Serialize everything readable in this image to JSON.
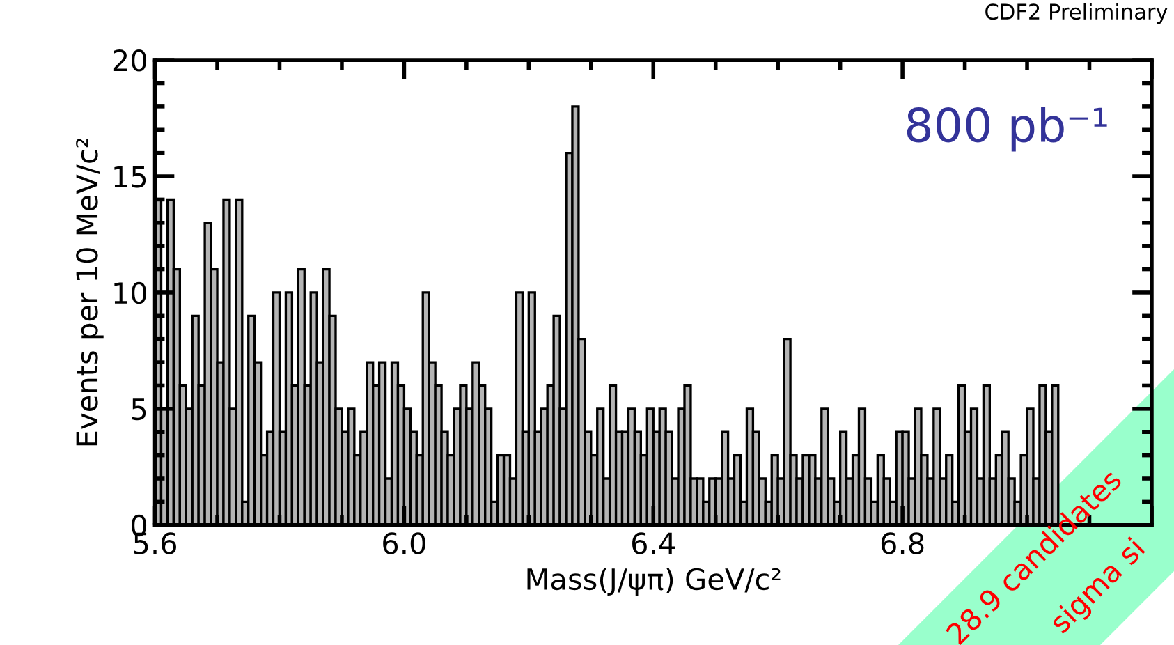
{
  "chart_data": {
    "type": "histogram",
    "annotations": [
      "CDF2 Preliminary",
      "800 pb⁻¹",
      "28.9 candidates",
      "sigma si"
    ],
    "xlabel": "Mass(J/ψπ) GeV/c²",
    "ylabel": "Events per 10 MeV/c²",
    "bins": [
      5.6,
      5.61,
      5.62,
      5.63,
      5.64,
      5.65,
      5.66,
      5.67,
      5.68,
      5.69,
      5.7,
      5.71,
      5.72,
      5.73,
      5.74,
      5.75,
      5.76,
      5.77,
      5.78,
      5.79,
      5.8,
      5.81,
      5.82,
      5.83,
      5.84,
      5.85,
      5.86,
      5.87,
      5.88,
      5.89,
      5.9,
      5.91,
      5.92,
      5.93,
      5.94,
      5.95,
      5.96,
      5.97,
      5.98,
      5.99,
      6.0,
      6.01,
      6.02,
      6.03,
      6.04,
      6.05,
      6.06,
      6.07,
      6.08,
      6.09,
      6.1,
      6.11,
      6.12,
      6.13,
      6.14,
      6.15,
      6.16,
      6.17,
      6.18,
      6.19,
      6.2,
      6.21,
      6.22,
      6.23,
      6.24,
      6.25,
      6.26,
      6.27,
      6.28,
      6.29,
      6.3,
      6.31,
      6.32,
      6.33,
      6.34,
      6.35,
      6.36,
      6.37,
      6.38,
      6.39,
      6.4,
      6.41,
      6.42,
      6.43,
      6.44,
      6.45,
      6.46,
      6.47,
      6.48,
      6.49,
      6.5,
      6.51,
      6.52,
      6.53,
      6.54,
      6.55,
      6.56,
      6.57,
      6.58,
      6.59,
      6.6,
      6.61,
      6.62,
      6.63,
      6.64,
      6.65,
      6.66,
      6.67,
      6.68,
      6.69,
      6.7,
      6.71,
      6.72,
      6.73,
      6.74,
      6.75,
      6.76,
      6.77,
      6.78,
      6.79,
      6.8,
      6.81,
      6.82,
      6.83,
      6.84,
      6.85,
      6.86,
      6.87,
      6.88,
      6.89,
      6.9,
      6.91,
      6.92,
      6.93,
      6.94,
      6.95,
      6.96,
      6.97,
      6.98,
      6.99,
      7.0,
      7.01,
      7.02,
      7.03,
      7.04,
      7.05,
      7.06,
      7.07,
      7.08,
      7.09,
      7.1,
      7.11,
      7.12,
      7.13,
      7.14,
      7.15,
      7.16,
      7.17,
      7.18,
      7.19,
      7.2
    ],
    "values": [
      14,
      5,
      14,
      11,
      6,
      5,
      9,
      6,
      13,
      11,
      7,
      14,
      5,
      14,
      1,
      9,
      7,
      3,
      4,
      10,
      4,
      10,
      6,
      11,
      6,
      10,
      7,
      11,
      9,
      5,
      4,
      5,
      3,
      4,
      7,
      6,
      7,
      2,
      7,
      6,
      5,
      4,
      3,
      10,
      7,
      6,
      4,
      3,
      5,
      6,
      5,
      7,
      6,
      5,
      1,
      3,
      3,
      2,
      10,
      4,
      10,
      4,
      5,
      6,
      9,
      5,
      16,
      18,
      8,
      4,
      3,
      5,
      2,
      6,
      4,
      4,
      5,
      4,
      3,
      5,
      4,
      5,
      4,
      2,
      5,
      6,
      2,
      2,
      1,
      2,
      2,
      4,
      2,
      3,
      1,
      5,
      4,
      2,
      1,
      3,
      2,
      8,
      3,
      2,
      3,
      3,
      2,
      5,
      2,
      1,
      4,
      2,
      3,
      5,
      2,
      1,
      3,
      2,
      1,
      4,
      4,
      2,
      5,
      3,
      2,
      5,
      2,
      3,
      1,
      6,
      4,
      5,
      2,
      6,
      2,
      3,
      4,
      2,
      1,
      3,
      5,
      2,
      6,
      4,
      6,
      null,
      null,
      null,
      null,
      null,
      null,
      null,
      null,
      null,
      null,
      null,
      null,
      null,
      null,
      null
    ],
    "color": "#b4b4b4",
    "xlim": [
      5.6,
      7.2
    ],
    "xticks": [
      5.6,
      {
        "value": 6.0,
        "label": "6.0"
      },
      6.4,
      6.8,
      {
        "value": 7.2,
        "label": null
      }
    ],
    "ylim": [
      0,
      20
    ],
    "yticks": [
      0,
      5,
      10,
      15,
      20
    ],
    "grid": false
  }
}
